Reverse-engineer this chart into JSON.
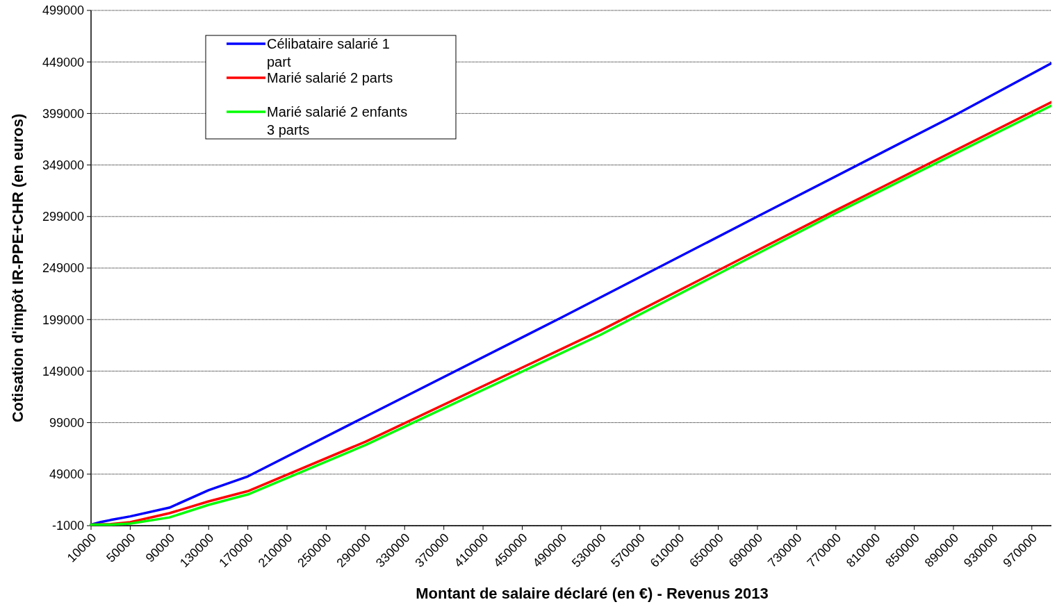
{
  "chart_data": {
    "type": "line",
    "xlabel": "Montant de salaire déclaré (en €) - Revenus 2013",
    "ylabel": "Cotisation d'impôt IR-PPE+CHR (en euros)",
    "xlim": [
      10000,
      990000
    ],
    "ylim": [
      -1000,
      499000
    ],
    "xticks": [
      10000,
      50000,
      90000,
      130000,
      170000,
      210000,
      250000,
      290000,
      330000,
      370000,
      410000,
      450000,
      490000,
      530000,
      570000,
      610000,
      650000,
      690000,
      730000,
      770000,
      810000,
      850000,
      890000,
      930000,
      970000
    ],
    "yticks": [
      -1000,
      49000,
      99000,
      149000,
      199000,
      249000,
      299000,
      349000,
      399000,
      449000,
      499000
    ],
    "grid": "y",
    "legend": "top left",
    "marker": "none",
    "line_style": "solid",
    "series": [
      {
        "name": "Célibataire salarié 1 part",
        "color": "#0000ff",
        "x": [
          10000,
          20000,
          30000,
          50000,
          90000,
          130000,
          170000,
          290000,
          490000,
          690000,
          890000,
          990000
        ],
        "values": [
          0,
          2500,
          4500,
          8000,
          16500,
          33500,
          46800,
          104800,
          201000,
          299000,
          396600,
          447800
        ]
      },
      {
        "name": "Marié salarié 2 parts",
        "color": "#ff0000",
        "x": [
          10000,
          30000,
          50000,
          90000,
          130000,
          170000,
          290000,
          530000,
          770000,
          990000
        ],
        "values": [
          0,
          500,
          2400,
          11100,
          22600,
          32500,
          80500,
          188400,
          305000,
          410000
        ]
      },
      {
        "name": "Marié salarié 2 enfants 3 parts",
        "color": "#00ff00",
        "x": [
          10000,
          30000,
          50000,
          90000,
          130000,
          170000,
          290000,
          530000,
          770000,
          990000
        ],
        "values": [
          0,
          0,
          1000,
          7000,
          19200,
          29300,
          77200,
          184300,
          302200,
          406700
        ]
      }
    ]
  }
}
